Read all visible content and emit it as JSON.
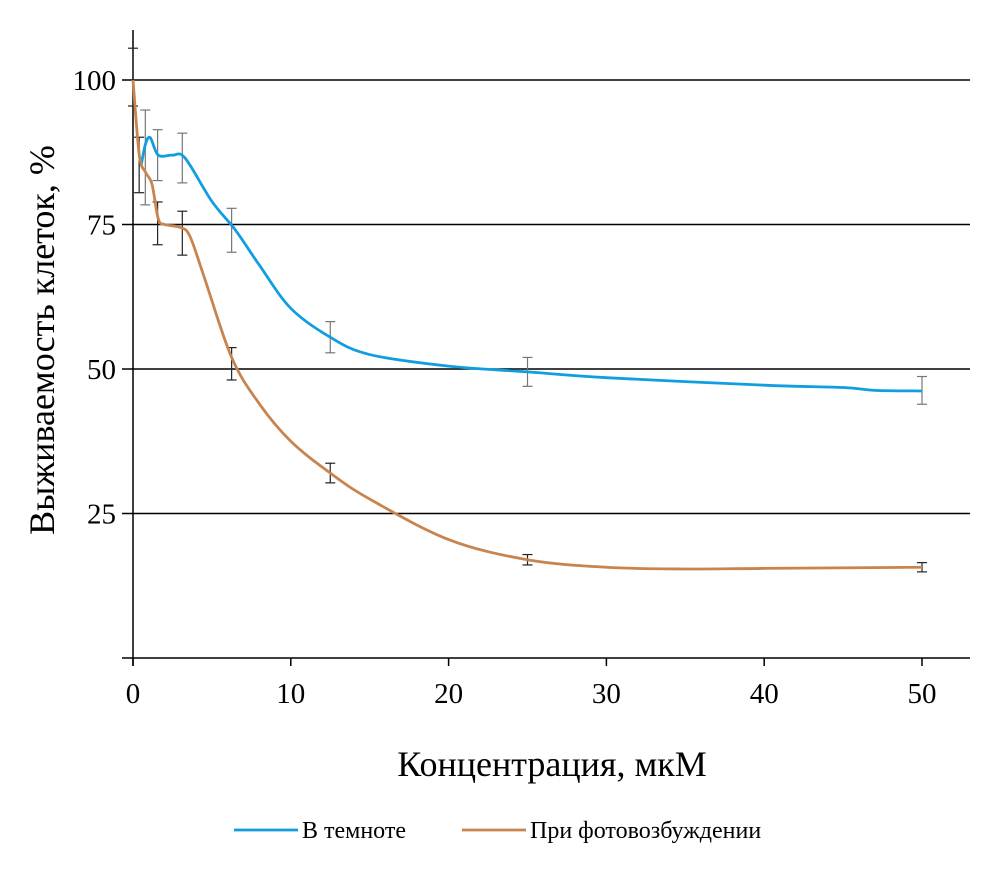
{
  "chart_data": {
    "type": "line",
    "title": "",
    "xlabel": "Концентрация, мкМ",
    "ylabel": "Выживаемость клеток, %",
    "xlim": [
      0,
      53
    ],
    "ylim": [
      0,
      108.5
    ],
    "xticks": [
      0,
      10,
      20,
      30,
      40,
      50
    ],
    "yticks": [
      25,
      50,
      75,
      100
    ],
    "grid": "horizontal at y ticks",
    "legend": "bottom",
    "series": [
      {
        "name": "В темноте",
        "color": "#119ee0",
        "x": [
          0.5,
          0.8,
          1.1,
          1.6,
          2.5,
          3.3,
          5,
          6.5,
          8,
          10,
          12.5,
          15,
          20,
          25,
          30,
          40,
          45,
          47,
          50
        ],
        "y": [
          85,
          89,
          90,
          87,
          87,
          86.5,
          79,
          74,
          68,
          60.5,
          55.5,
          52.5,
          50.5,
          49.5,
          48.5,
          47.2,
          46.8,
          46.3,
          46.2
        ],
        "error_bars": [
          {
            "x": 0.78,
            "y": 86.6,
            "err": 8.2
          },
          {
            "x": 1.56,
            "y": 87,
            "err": 4.4
          },
          {
            "x": 3.125,
            "y": 86.5,
            "err": 4.3
          },
          {
            "x": 6.25,
            "y": 74,
            "err": 3.8
          },
          {
            "x": 12.5,
            "y": 55.5,
            "err": 2.7
          },
          {
            "x": 25,
            "y": 49.5,
            "err": 2.5
          },
          {
            "x": 50,
            "y": 46.3,
            "err": 2.4
          }
        ]
      },
      {
        "name": "При фотовозбуждении",
        "color": "#c8844e",
        "x": [
          0,
          0.4,
          0.8,
          1.2,
          1.6,
          2,
          3,
          3.6,
          4.5,
          6.25,
          8,
          10,
          12.5,
          15,
          20,
          25,
          30,
          35,
          40,
          50
        ],
        "y": [
          100,
          87,
          84,
          82,
          76,
          75,
          74.5,
          73,
          66,
          52,
          44,
          37.5,
          32,
          27.5,
          20.5,
          17,
          15.7,
          15.4,
          15.5,
          15.7
        ],
        "error_bars": [
          {
            "x": 0,
            "y": 100.5,
            "err": 5
          },
          {
            "x": 0.39,
            "y": 85.3,
            "err": 4.8
          },
          {
            "x": 1.56,
            "y": 75.2,
            "err": 3.7
          },
          {
            "x": 3.125,
            "y": 73.5,
            "err": 3.8
          },
          {
            "x": 6.25,
            "y": 50.9,
            "err": 2.8
          },
          {
            "x": 12.5,
            "y": 32,
            "err": 1.7
          },
          {
            "x": 25,
            "y": 17,
            "err": 0.9
          },
          {
            "x": 50,
            "y": 15.7,
            "err": 0.8
          }
        ]
      }
    ]
  }
}
